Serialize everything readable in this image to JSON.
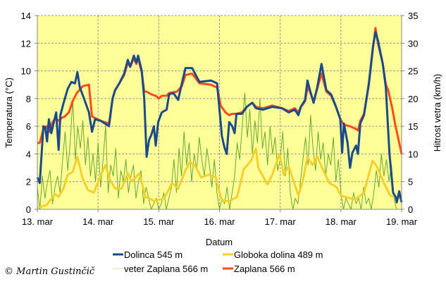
{
  "chart_data": {
    "type": "line",
    "xlabel": "Datum",
    "ylabel": "Temperatura (°C)",
    "y2label": "Hitrost vetra (km/h)",
    "xlim": [
      0,
      6
    ],
    "ylim": [
      0,
      14
    ],
    "y2lim": [
      0,
      35
    ],
    "grid": true,
    "legend_position": "bottom",
    "x_ticks": [
      0,
      1,
      2,
      3,
      4,
      5,
      6
    ],
    "x_tick_labels": [
      "13. mar",
      "14. mar",
      "15. mar",
      "16. mar",
      "17. mar",
      "18. mar",
      "19. mar"
    ],
    "y_ticks": [
      0,
      2,
      4,
      6,
      8,
      10,
      12,
      14
    ],
    "y_tick_labels": [
      "0",
      "2",
      "4",
      "6",
      "8",
      "10",
      "12",
      "14"
    ],
    "y2_ticks": [
      0,
      5,
      10,
      15,
      20,
      25,
      30,
      35
    ],
    "y2_tick_labels": [
      "0",
      "5",
      "10",
      "15",
      "20",
      "25",
      "30",
      "35"
    ],
    "x_unit": "days since 13. mar 00:00",
    "series": [
      {
        "name": "veter Zaplana 566 m",
        "axis": "y2",
        "color": "#6aa82a",
        "width": 1,
        "x_step": 0.041667,
        "values": [
          4,
          0,
          6,
          2,
          5,
          7,
          1,
          4,
          6,
          3,
          9,
          14,
          7,
          12,
          20,
          9,
          15,
          11,
          16,
          8,
          13,
          6,
          10,
          5,
          12,
          4,
          9,
          15,
          3,
          8,
          6,
          11,
          2,
          7,
          5,
          9,
          3,
          6,
          8,
          2,
          5,
          7,
          1,
          4,
          2,
          0,
          1,
          2,
          0,
          1,
          3,
          0,
          2,
          4,
          9,
          3,
          11,
          6,
          14,
          8,
          12,
          5,
          10,
          7,
          13,
          9,
          6,
          11,
          8,
          4,
          9,
          3,
          0,
          2,
          1,
          4,
          0,
          3,
          6,
          12,
          9,
          15,
          21,
          13,
          18,
          10,
          16,
          12,
          20,
          11,
          14,
          8,
          15,
          10,
          13,
          7,
          9,
          14,
          6,
          11,
          3,
          0,
          2,
          1,
          5,
          9,
          13,
          8,
          17,
          11,
          7,
          14,
          9,
          12,
          6,
          10,
          8,
          13,
          5,
          9,
          3,
          0,
          2,
          1,
          0,
          3,
          1,
          2,
          0,
          4,
          1,
          2,
          0,
          3,
          7,
          4,
          10,
          6,
          9,
          5,
          8,
          2,
          0,
          0,
          0
        ]
      },
      {
        "name": "Globoka dolina 489 m",
        "axis": "y",
        "color": "#f5d02a",
        "width": 3,
        "points": [
          [
            0,
            0.1
          ],
          [
            0.15,
            0.3
          ],
          [
            0.29,
            1.1
          ],
          [
            0.35,
            0.9
          ],
          [
            0.43,
            1.5
          ],
          [
            0.5,
            2.5
          ],
          [
            0.58,
            2.7
          ],
          [
            0.66,
            3.8
          ],
          [
            0.74,
            2.3
          ],
          [
            0.83,
            1.4
          ],
          [
            0.93,
            1.2
          ],
          [
            1.03,
            2.3
          ],
          [
            1.12,
            3.2
          ],
          [
            1.2,
            2.1
          ],
          [
            1.28,
            1.5
          ],
          [
            1.39,
            1.5
          ],
          [
            1.49,
            2.6
          ],
          [
            1.55,
            2.0
          ],
          [
            1.68,
            2.6
          ],
          [
            1.78,
            0.9
          ],
          [
            1.93,
            0.6
          ],
          [
            2.09,
            0.8
          ],
          [
            2.22,
            1.9
          ],
          [
            2.32,
            1.5
          ],
          [
            2.44,
            2.8
          ],
          [
            2.51,
            3.4
          ],
          [
            2.59,
            3.2
          ],
          [
            2.7,
            2.3
          ],
          [
            2.82,
            2.5
          ],
          [
            2.94,
            2.3
          ],
          [
            3.02,
            0.9
          ],
          [
            3.06,
            0.6
          ],
          [
            3.17,
            0.6
          ],
          [
            3.29,
            0.9
          ],
          [
            3.4,
            2.9
          ],
          [
            3.52,
            3.5
          ],
          [
            3.6,
            4.4
          ],
          [
            3.64,
            3.0
          ],
          [
            3.79,
            1.8
          ],
          [
            3.87,
            2.5
          ],
          [
            3.99,
            4.0
          ],
          [
            4.06,
            2.5
          ],
          [
            4.14,
            3.1
          ],
          [
            4.3,
            1.0
          ],
          [
            4.37,
            2.0
          ],
          [
            4.45,
            3.8
          ],
          [
            4.53,
            3.2
          ],
          [
            4.61,
            3.8
          ],
          [
            4.7,
            2.9
          ],
          [
            4.81,
            1.9
          ],
          [
            4.93,
            1.6
          ],
          [
            5.0,
            1.0
          ],
          [
            5.15,
            0.8
          ],
          [
            5.23,
            0.7
          ],
          [
            5.38,
            1.2
          ],
          [
            5.52,
            3.5
          ],
          [
            5.58,
            3.2
          ],
          [
            5.7,
            2.0
          ],
          [
            5.81,
            1.0
          ],
          [
            5.94,
            0.8
          ],
          [
            6.0,
            0.9
          ]
        ]
      },
      {
        "name": "Zaplana 566 m",
        "axis": "y",
        "color": "#ff4a1a",
        "width": 3,
        "points": [
          [
            0,
            4.8
          ],
          [
            0.04,
            4.8
          ],
          [
            0.1,
            5.8
          ],
          [
            0.15,
            6.0
          ],
          [
            0.2,
            5.6
          ],
          [
            0.25,
            6.3
          ],
          [
            0.3,
            6.6
          ],
          [
            0.35,
            6.4
          ],
          [
            0.4,
            6.6
          ],
          [
            0.45,
            6.7
          ],
          [
            0.52,
            7.0
          ],
          [
            0.58,
            7.8
          ],
          [
            0.65,
            8.4
          ],
          [
            0.75,
            8.9
          ],
          [
            0.85,
            9.0
          ],
          [
            0.9,
            6.7
          ],
          [
            0.95,
            6.6
          ],
          [
            1.04,
            6.4
          ],
          [
            1.18,
            6.2
          ],
          [
            1.24,
            8.0
          ],
          [
            1.28,
            8.6
          ],
          [
            1.35,
            9.1
          ],
          [
            1.43,
            9.7
          ],
          [
            1.49,
            10.6
          ],
          [
            1.53,
            10.3
          ],
          [
            1.59,
            10.9
          ],
          [
            1.63,
            10.5
          ],
          [
            1.66,
            10.9
          ],
          [
            1.72,
            9.9
          ],
          [
            1.76,
            8.5
          ],
          [
            1.8,
            8.5
          ],
          [
            1.88,
            8.3
          ],
          [
            1.95,
            8.2
          ],
          [
            2.0,
            8.0
          ],
          [
            2.05,
            8.2
          ],
          [
            2.13,
            8.2
          ],
          [
            2.17,
            8.4
          ],
          [
            2.3,
            8.5
          ],
          [
            2.38,
            8.9
          ],
          [
            2.44,
            9.7
          ],
          [
            2.55,
            9.8
          ],
          [
            2.67,
            9.1
          ],
          [
            2.86,
            9.0
          ],
          [
            2.96,
            8.8
          ],
          [
            3.02,
            7.5
          ],
          [
            3.1,
            7.0
          ],
          [
            3.16,
            6.8
          ],
          [
            3.21,
            6.9
          ],
          [
            3.28,
            6.9
          ],
          [
            3.37,
            7.0
          ],
          [
            3.45,
            7.4
          ],
          [
            3.54,
            7.7
          ],
          [
            3.6,
            7.4
          ],
          [
            3.72,
            7.3
          ],
          [
            3.87,
            7.5
          ],
          [
            4.03,
            7.3
          ],
          [
            4.14,
            7.1
          ],
          [
            4.24,
            7.3
          ],
          [
            4.3,
            7.0
          ],
          [
            4.34,
            7.4
          ],
          [
            4.41,
            7.8
          ],
          [
            4.45,
            8.8
          ],
          [
            4.49,
            8.5
          ],
          [
            4.55,
            7.8
          ],
          [
            4.61,
            8.7
          ],
          [
            4.68,
            9.8
          ],
          [
            4.76,
            8.5
          ],
          [
            4.84,
            8.2
          ],
          [
            4.92,
            7.4
          ],
          [
            4.99,
            6.5
          ],
          [
            5.05,
            6.1
          ],
          [
            5.15,
            6.0
          ],
          [
            5.25,
            5.8
          ],
          [
            5.28,
            5.7
          ],
          [
            5.32,
            6.4
          ],
          [
            5.38,
            6.9
          ],
          [
            5.46,
            9.0
          ],
          [
            5.53,
            11.7
          ],
          [
            5.57,
            13.1
          ],
          [
            5.61,
            12.0
          ],
          [
            5.69,
            10.5
          ],
          [
            5.74,
            9.0
          ],
          [
            5.78,
            8.6
          ],
          [
            5.85,
            7.2
          ],
          [
            5.9,
            6.0
          ],
          [
            5.96,
            4.8
          ],
          [
            6.0,
            4.0
          ]
        ]
      },
      {
        "name": "Dolinca 545 m",
        "axis": "y",
        "color": "#1a4a8a",
        "width": 3,
        "points": [
          [
            0,
            2.3
          ],
          [
            0.04,
            1.9
          ],
          [
            0.1,
            6.0
          ],
          [
            0.13,
            5.9
          ],
          [
            0.16,
            4.9
          ],
          [
            0.19,
            6.5
          ],
          [
            0.23,
            5.5
          ],
          [
            0.31,
            7.0
          ],
          [
            0.35,
            4.3
          ],
          [
            0.38,
            6.8
          ],
          [
            0.44,
            7.8
          ],
          [
            0.5,
            8.7
          ],
          [
            0.56,
            9.2
          ],
          [
            0.62,
            9.1
          ],
          [
            0.66,
            9.9
          ],
          [
            0.7,
            8.8
          ],
          [
            0.77,
            8.0
          ],
          [
            0.85,
            7.0
          ],
          [
            0.9,
            5.6
          ],
          [
            0.95,
            6.5
          ],
          [
            1.04,
            6.4
          ],
          [
            1.18,
            6.0
          ],
          [
            1.24,
            8.0
          ],
          [
            1.28,
            8.6
          ],
          [
            1.35,
            9.1
          ],
          [
            1.43,
            9.8
          ],
          [
            1.49,
            10.8
          ],
          [
            1.53,
            10.3
          ],
          [
            1.59,
            11.1
          ],
          [
            1.63,
            10.6
          ],
          [
            1.66,
            11.1
          ],
          [
            1.72,
            10.0
          ],
          [
            1.76,
            8.0
          ],
          [
            1.8,
            3.8
          ],
          [
            1.84,
            5.0
          ],
          [
            1.88,
            5.4
          ],
          [
            1.92,
            6.0
          ],
          [
            1.95,
            4.6
          ],
          [
            1.99,
            6.3
          ],
          [
            2.05,
            7.0
          ],
          [
            2.13,
            7.2
          ],
          [
            2.17,
            8.3
          ],
          [
            2.24,
            8.4
          ],
          [
            2.32,
            7.9
          ],
          [
            2.38,
            9.1
          ],
          [
            2.44,
            10.2
          ],
          [
            2.55,
            10.2
          ],
          [
            2.67,
            9.2
          ],
          [
            2.86,
            9.3
          ],
          [
            2.96,
            9.1
          ],
          [
            3.04,
            5.3
          ],
          [
            3.08,
            4.5
          ],
          [
            3.12,
            4.0
          ],
          [
            3.16,
            6.3
          ],
          [
            3.21,
            6.0
          ],
          [
            3.25,
            5.5
          ],
          [
            3.28,
            6.9
          ],
          [
            3.37,
            6.9
          ],
          [
            3.45,
            7.4
          ],
          [
            3.54,
            7.7
          ],
          [
            3.6,
            7.3
          ],
          [
            3.72,
            7.2
          ],
          [
            3.87,
            7.4
          ],
          [
            4.03,
            7.3
          ],
          [
            4.14,
            7.0
          ],
          [
            4.24,
            7.2
          ],
          [
            4.3,
            6.8
          ],
          [
            4.34,
            7.4
          ],
          [
            4.41,
            7.9
          ],
          [
            4.45,
            9.3
          ],
          [
            4.49,
            8.6
          ],
          [
            4.55,
            7.7
          ],
          [
            4.61,
            8.8
          ],
          [
            4.68,
            10.5
          ],
          [
            4.76,
            8.6
          ],
          [
            4.84,
            8.3
          ],
          [
            4.92,
            7.4
          ],
          [
            4.99,
            6.5
          ],
          [
            5.02,
            4.1
          ],
          [
            5.05,
            6.2
          ],
          [
            5.11,
            4.8
          ],
          [
            5.15,
            3.0
          ],
          [
            5.19,
            4.1
          ],
          [
            5.25,
            4.6
          ],
          [
            5.28,
            4.0
          ],
          [
            5.32,
            6.2
          ],
          [
            5.38,
            6.8
          ],
          [
            5.46,
            9.1
          ],
          [
            5.53,
            11.8
          ],
          [
            5.57,
            12.8
          ],
          [
            5.61,
            12.2
          ],
          [
            5.69,
            10.5
          ],
          [
            5.74,
            8.8
          ],
          [
            5.8,
            4.0
          ],
          [
            5.86,
            1.2
          ],
          [
            5.9,
            0.9
          ],
          [
            5.92,
            0.5
          ],
          [
            5.96,
            1.3
          ],
          [
            6.0,
            0.5
          ]
        ]
      }
    ],
    "legend": [
      {
        "label": "Dolinca 545 m",
        "color": "#1a4a8a"
      },
      {
        "label": "Globoka dolina 489 m",
        "color": "#f5d02a"
      },
      {
        "label": "veter Zaplana 566 m",
        "color": "#d8e0a0"
      },
      {
        "label": "Zaplana 566 m",
        "color": "#ff4a1a"
      }
    ]
  },
  "copyright": "© Martin Gustinčič"
}
